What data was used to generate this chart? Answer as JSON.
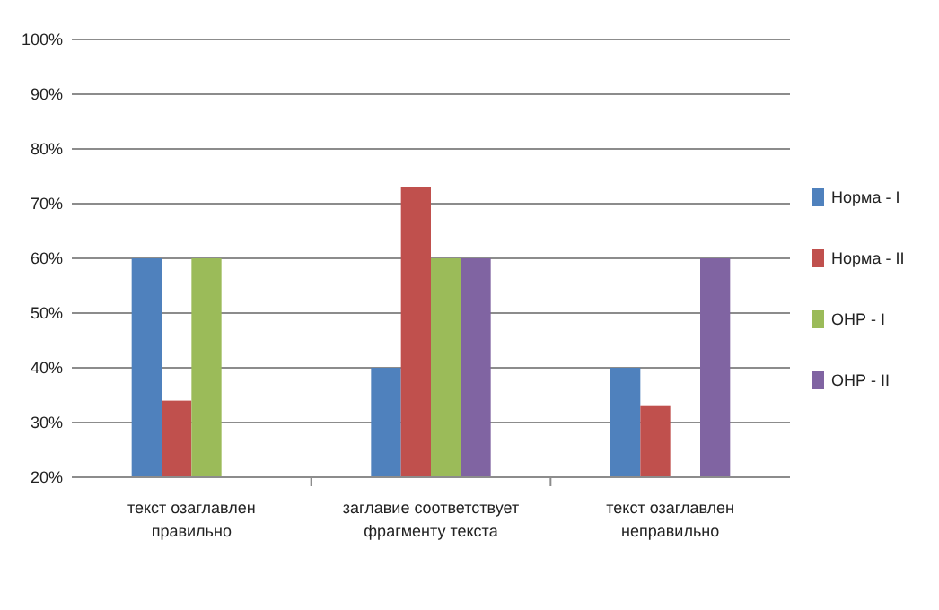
{
  "chart_data": {
    "type": "bar",
    "categories": [
      "текст озаглавлен правильно",
      "заглавие соответствует фрагменту текста",
      "текст озаглавлен неправильно"
    ],
    "series": [
      {
        "name": "Норма - I",
        "color": "#4f81bd",
        "values": [
          60,
          40,
          40
        ]
      },
      {
        "name": "Норма - II",
        "color": "#c0504d",
        "values": [
          34,
          73,
          33
        ]
      },
      {
        "name": "ОНР - I",
        "color": "#9bbb59",
        "values": [
          60,
          60,
          null
        ]
      },
      {
        "name": "ОНР - II",
        "color": "#8064a2",
        "values": [
          null,
          60,
          60
        ]
      }
    ],
    "ylim": [
      20,
      100
    ],
    "yticks": [
      {
        "value": 20,
        "label": "20%"
      },
      {
        "value": 30,
        "label": "30%"
      },
      {
        "value": 40,
        "label": "40%"
      },
      {
        "value": 50,
        "label": "50%"
      },
      {
        "value": 60,
        "label": "60%"
      },
      {
        "value": 70,
        "label": "70%"
      },
      {
        "value": 80,
        "label": "80%"
      },
      {
        "value": 90,
        "label": "90%"
      },
      {
        "value": 100,
        "label": "100%"
      }
    ],
    "grid": true,
    "legend": "right"
  }
}
